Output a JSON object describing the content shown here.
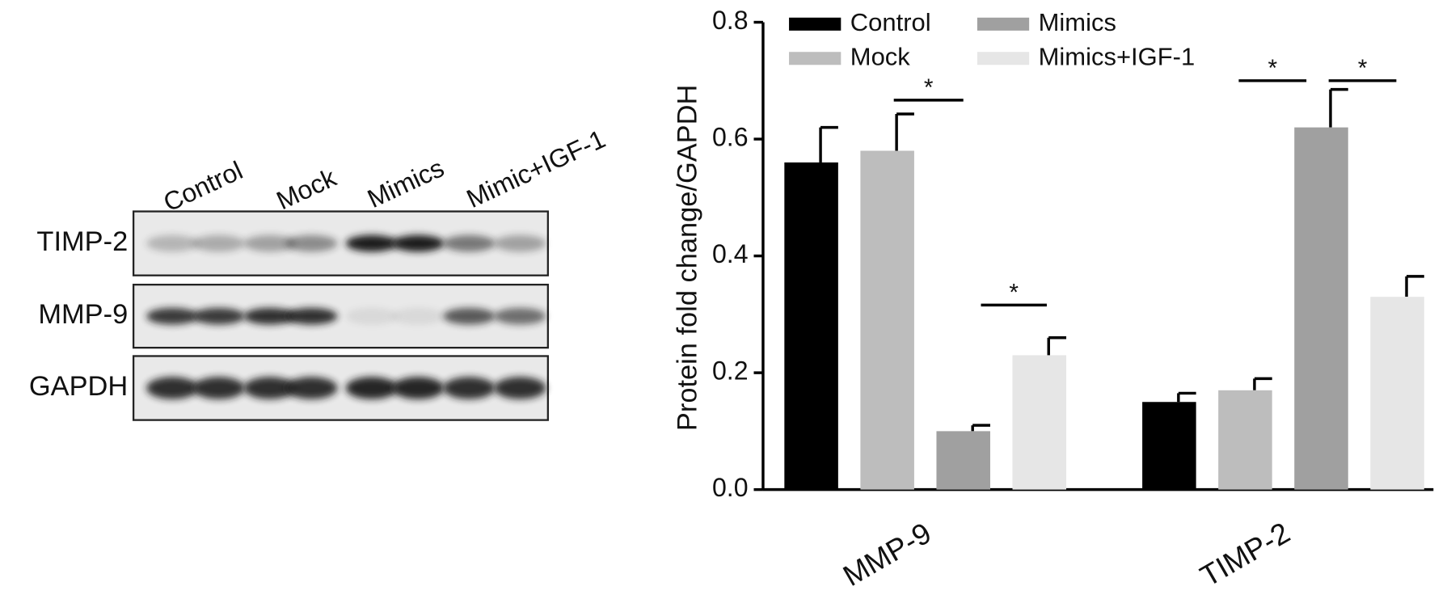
{
  "blot": {
    "lanes": [
      "Control",
      "Mock",
      "Mimics",
      "Mimic+IGF-1"
    ],
    "rows": [
      "TIMP-2",
      "MMP-9",
      "GAPDH"
    ]
  },
  "chart_data": {
    "type": "bar",
    "y_label": "Protein fold change/GAPDH",
    "categories": [
      "MMP-9",
      "TIMP-2"
    ],
    "series": [
      {
        "name": "Control",
        "color": "#000000",
        "values": [
          0.56,
          0.15
        ],
        "errors": [
          0.06,
          0.015
        ]
      },
      {
        "name": "Mock",
        "color": "#bdbdbd",
        "values": [
          0.58,
          0.17
        ],
        "errors": [
          0.063,
          0.02
        ]
      },
      {
        "name": "Mimics",
        "color": "#a0a0a0",
        "values": [
          0.1,
          0.62
        ],
        "errors": [
          0.01,
          0.065
        ]
      },
      {
        "name": "Mimics+IGF-1",
        "color": "#e6e6e6",
        "values": [
          0.23,
          0.33
        ],
        "errors": [
          0.03,
          0.035
        ]
      }
    ],
    "ylim": [
      0,
      0.8
    ],
    "yticks": [
      {
        "value": 0,
        "label": "0.0"
      },
      0.2,
      0.4,
      0.6,
      0.8
    ],
    "annotations": [
      "*",
      "*",
      "*",
      "*"
    ]
  }
}
